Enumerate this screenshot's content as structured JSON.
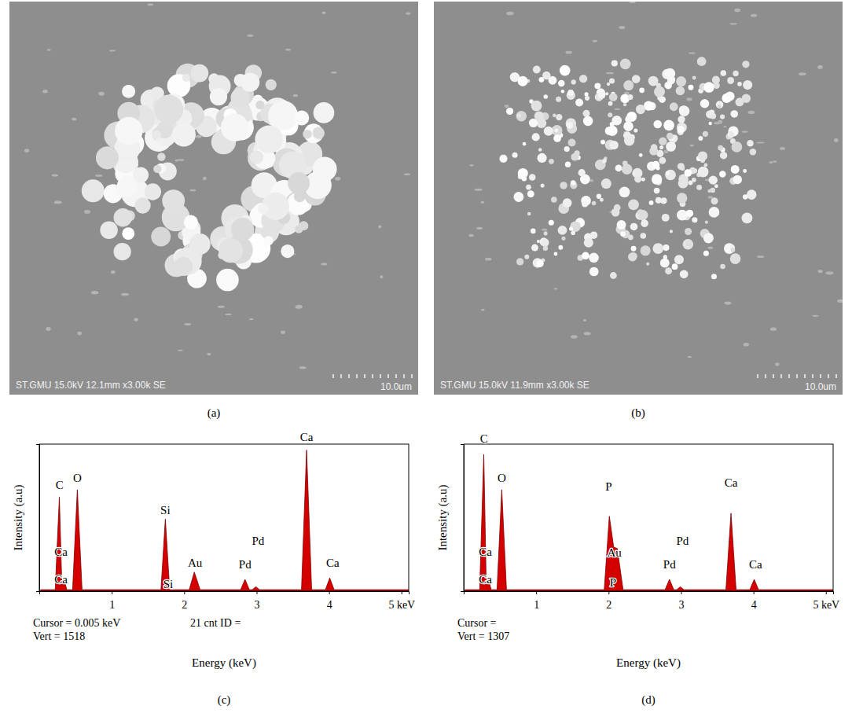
{
  "images": [
    {
      "label": "(a)",
      "info": "ST.GMU 15.0kV 12.1mm x3.00k SE",
      "scale_bar": "10.0um"
    },
    {
      "label": "(b)",
      "info": "ST.GMU 15.0kV 11.9mm x3.00k SE",
      "scale_bar": "10.0um"
    }
  ],
  "chart_data": [
    {
      "type": "area",
      "title": "(c)",
      "x_label": "Energy (keV)",
      "y_label": "Intensity (a.u)",
      "x": [
        0.02,
        0.22,
        0.277,
        0.31,
        0.34,
        0.38,
        0.46,
        0.525,
        0.59,
        1.68,
        1.74,
        1.8,
        2.07,
        2.14,
        2.22,
        2.78,
        2.84,
        2.9,
        2.94,
        2.99,
        3.04,
        3.62,
        3.69,
        3.76,
        3.95,
        4.01,
        4.07,
        5.1
      ],
      "values": [
        1,
        1,
        64,
        6,
        8,
        1,
        1,
        69,
        1,
        1,
        49,
        1,
        1,
        13,
        1,
        1,
        8,
        1,
        1,
        3,
        1,
        1,
        96,
        1,
        1,
        9,
        1,
        1
      ],
      "color": "#d40000",
      "xlim": [
        0,
        5.1
      ],
      "xticks": [
        1,
        2,
        3,
        4,
        {
          "value": 5,
          "label": "5 keV"
        }
      ],
      "ylim": [
        0,
        100
      ],
      "tick_labels": "x",
      "grid": false,
      "annotations": [
        {
          "text": "C",
          "x": 0.28,
          "y": 72
        },
        {
          "text": "Ca",
          "x": 0.3,
          "y": 27
        },
        {
          "text": "Ca",
          "x": 0.3,
          "y": 8
        },
        {
          "text": "O",
          "x": 0.525,
          "y": 77
        },
        {
          "text": "Si",
          "x": 1.74,
          "y": 55
        },
        {
          "text": "Si",
          "x": 1.78,
          "y": 5
        },
        {
          "text": "Au",
          "x": 2.15,
          "y": 19
        },
        {
          "text": "Pd",
          "x": 2.84,
          "y": 18
        },
        {
          "text": "Pd",
          "x": 3.02,
          "y": 34
        },
        {
          "text": "Ca",
          "x": 3.69,
          "y": 105
        },
        {
          "text": "Ca",
          "x": 4.05,
          "y": 19
        }
      ],
      "footer": [
        [
          "Cursor = 0.005 keV",
          "21 cnt ID ="
        ],
        [
          "Vert = 1518"
        ]
      ]
    },
    {
      "type": "area",
      "title": "(d)",
      "x_label": "Energy (keV)",
      "y_label": "Intensity (a.u)",
      "x": [
        0.02,
        0.22,
        0.277,
        0.31,
        0.34,
        0.38,
        0.46,
        0.525,
        0.59,
        1.94,
        2.01,
        2.07,
        2.12,
        2.2,
        2.78,
        2.84,
        2.9,
        2.94,
        2.99,
        3.04,
        3.62,
        3.69,
        3.76,
        3.95,
        4.01,
        4.07,
        5.1
      ],
      "values": [
        1,
        1,
        93,
        6,
        8,
        1,
        1,
        69,
        1,
        1,
        51,
        30,
        29,
        1,
        1,
        8,
        1,
        1,
        3,
        1,
        1,
        53,
        1,
        1,
        8,
        1,
        1
      ],
      "color": "#d40000",
      "xlim": [
        0,
        5.1
      ],
      "xticks": [
        1,
        2,
        3,
        4,
        {
          "value": 5,
          "label": "5 keV"
        }
      ],
      "ylim": [
        0,
        100
      ],
      "tick_labels": "x",
      "grid": false,
      "annotations": [
        {
          "text": "C",
          "x": 0.28,
          "y": 104
        },
        {
          "text": "Ca",
          "x": 0.3,
          "y": 27
        },
        {
          "text": "Ca",
          "x": 0.3,
          "y": 8
        },
        {
          "text": "O",
          "x": 0.525,
          "y": 77
        },
        {
          "text": "P",
          "x": 2.0,
          "y": 71
        },
        {
          "text": "Au",
          "x": 2.08,
          "y": 26
        },
        {
          "text": "P",
          "x": 2.06,
          "y": 6
        },
        {
          "text": "Pd",
          "x": 2.84,
          "y": 18
        },
        {
          "text": "Pd",
          "x": 3.02,
          "y": 34
        },
        {
          "text": "Ca",
          "x": 3.69,
          "y": 74
        },
        {
          "text": "Ca",
          "x": 4.03,
          "y": 18
        }
      ],
      "footer": [
        [
          "Cursor ="
        ],
        [
          "Vert = 1307"
        ]
      ]
    }
  ]
}
